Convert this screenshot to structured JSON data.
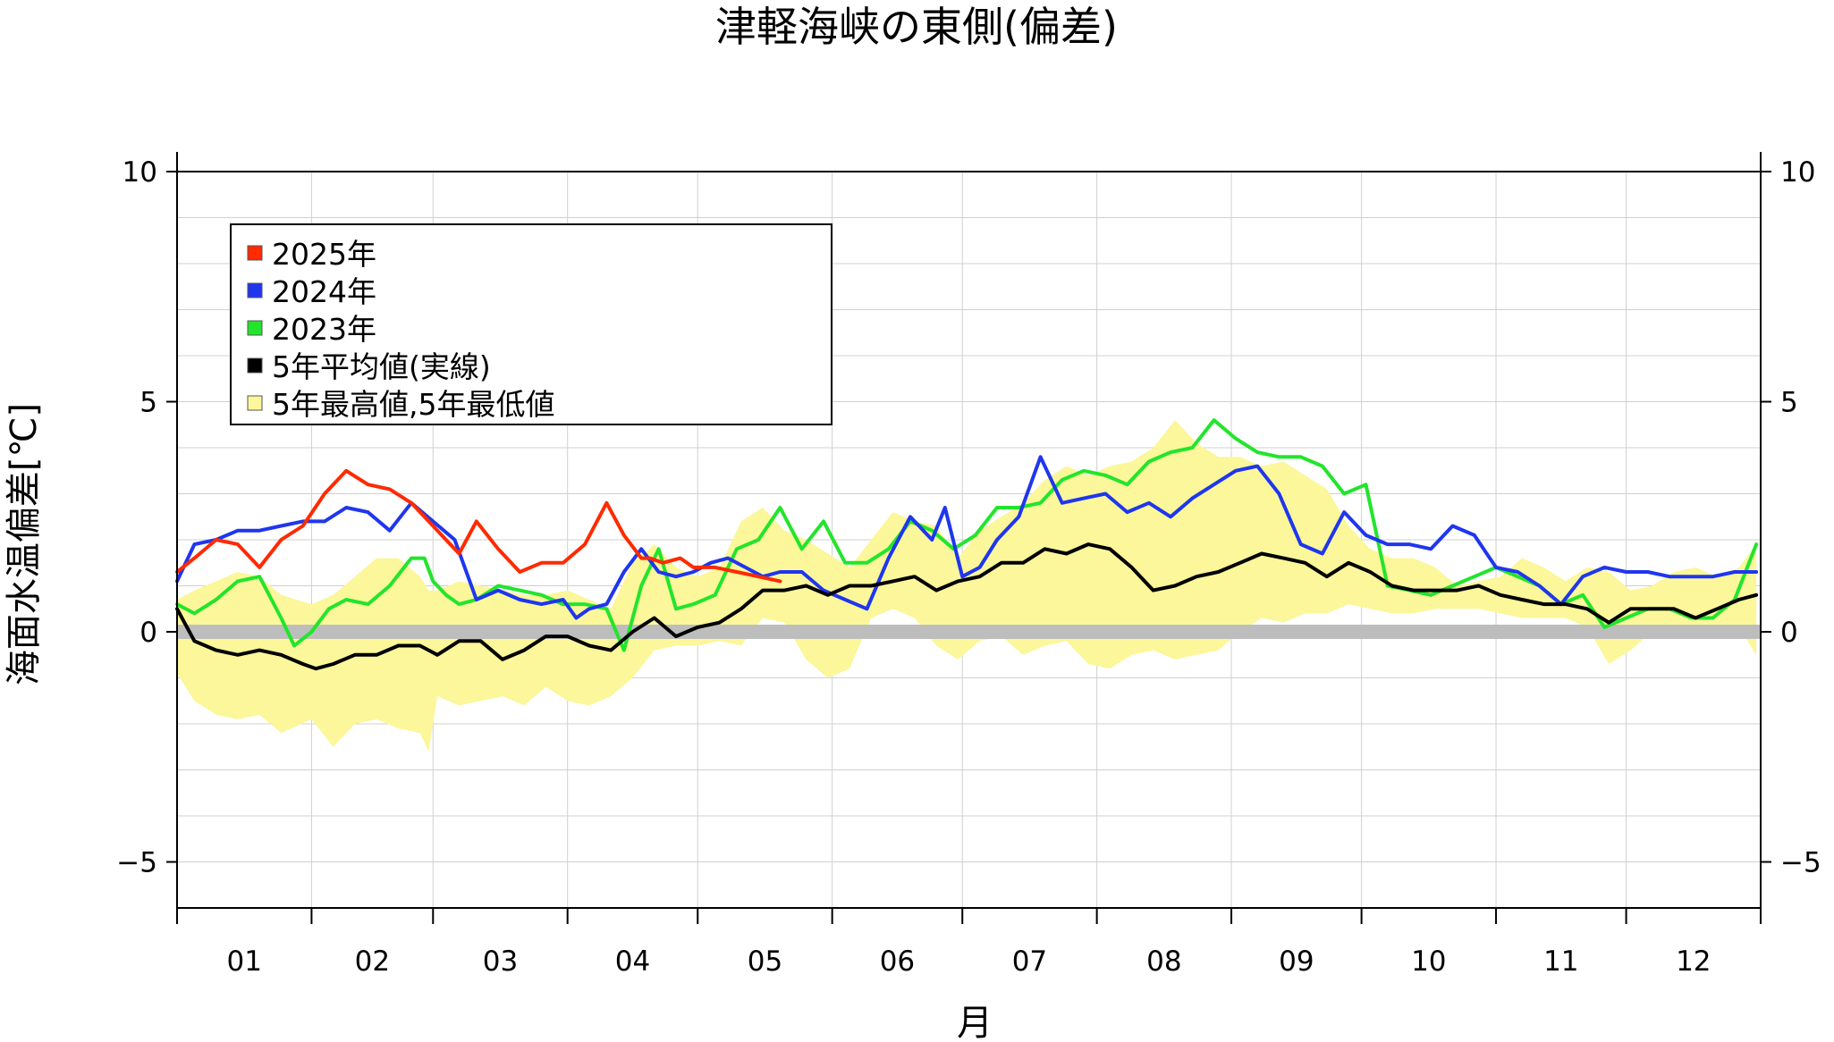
{
  "chart_data": {
    "type": "line",
    "title": "津軽海峡の東側(偏差)",
    "xlabel": "月",
    "ylabel": "海面水温偏差[℃]",
    "ylim": [
      -6,
      10
    ],
    "yticks": [
      10,
      5,
      0,
      -5
    ],
    "ytick_labels": [
      "10",
      "5",
      "0",
      "−5"
    ],
    "months": [
      "01",
      "02",
      "03",
      "04",
      "05",
      "06",
      "07",
      "08",
      "09",
      "10",
      "11",
      "12"
    ],
    "grid": true,
    "legend_position": "top-left",
    "legend": [
      {
        "label": "2025年",
        "color": "#ff2a00"
      },
      {
        "label": "2024年",
        "color": "#1f36ee"
      },
      {
        "label": "2023年",
        "color": "#22e52b"
      },
      {
        "label": "5年平均値(実線)",
        "color": "#000000"
      },
      {
        "label": "5年最高値,5年最低値",
        "color": "#fbf79a"
      }
    ],
    "x_unit": "day of year",
    "band": {
      "name": "5年最高値,5年最低値",
      "x": [
        1,
        5,
        10,
        15,
        20,
        25,
        32,
        37,
        42,
        47,
        52,
        57,
        59,
        61,
        66,
        71,
        76,
        81,
        86,
        91,
        96,
        101,
        106,
        111,
        116,
        121,
        126,
        131,
        136,
        141,
        146,
        151,
        156,
        161,
        166,
        171,
        176,
        181,
        186,
        191,
        196,
        201,
        206,
        211,
        216,
        221,
        226,
        231,
        236,
        241,
        246,
        251,
        256,
        261,
        266,
        271,
        276,
        281,
        286,
        291,
        296,
        301,
        306,
        311,
        316,
        321,
        326,
        331,
        336,
        341,
        346,
        351,
        356,
        361,
        365
      ],
      "upper": [
        0.7,
        0.9,
        1.1,
        1.3,
        1.2,
        0.8,
        0.6,
        0.8,
        1.2,
        1.6,
        1.6,
        1.2,
        0.9,
        0.9,
        1.1,
        1.0,
        0.9,
        0.8,
        0.8,
        0.9,
        0.7,
        0.5,
        1.5,
        1.9,
        1.4,
        1.2,
        1.4,
        2.4,
        2.7,
        2.2,
        2.0,
        1.7,
        1.4,
        2.0,
        2.6,
        2.4,
        2.3,
        1.6,
        2.2,
        2.5,
        2.8,
        3.3,
        3.6,
        3.4,
        3.6,
        3.7,
        4.0,
        4.6,
        4.1,
        3.8,
        3.8,
        3.6,
        3.7,
        3.4,
        3.1,
        2.3,
        1.8,
        1.6,
        1.6,
        1.4,
        1.0,
        1.1,
        1.2,
        1.6,
        1.4,
        1.1,
        1.4,
        1.3,
        0.9,
        1.0,
        1.3,
        1.4,
        1.2,
        1.4,
        1.9
      ],
      "lower": [
        -0.9,
        -1.5,
        -1.8,
        -1.9,
        -1.8,
        -2.2,
        -1.9,
        -2.5,
        -2.0,
        -1.9,
        -2.1,
        -2.2,
        -2.6,
        -1.4,
        -1.6,
        -1.5,
        -1.4,
        -1.6,
        -1.2,
        -1.5,
        -1.6,
        -1.4,
        -1.0,
        -0.4,
        -0.3,
        -0.3,
        -0.2,
        -0.3,
        0.3,
        0.2,
        -0.6,
        -1.0,
        -0.8,
        0.3,
        0.5,
        0.3,
        -0.3,
        -0.6,
        -0.2,
        -0.1,
        -0.5,
        -0.3,
        -0.2,
        -0.7,
        -0.8,
        -0.5,
        -0.4,
        -0.6,
        -0.5,
        -0.4,
        0.0,
        0.3,
        0.2,
        0.4,
        0.4,
        0.6,
        0.5,
        0.4,
        0.4,
        0.5,
        0.5,
        0.5,
        0.4,
        0.3,
        0.3,
        0.3,
        0.1,
        -0.7,
        -0.4,
        0.0,
        0.1,
        0.0,
        0.1,
        0.1,
        -0.5
      ]
    },
    "series": [
      {
        "name": "2025年",
        "color": "#ff2a00",
        "x": [
          1,
          5,
          10,
          15,
          20,
          25,
          30,
          35,
          40,
          45,
          50,
          55,
          60,
          63,
          66,
          70,
          75,
          80,
          85,
          90,
          95,
          100,
          104,
          108,
          110,
          113,
          117,
          120,
          125,
          130,
          135,
          140
        ],
        "y": [
          1.3,
          1.6,
          2.0,
          1.9,
          1.4,
          2.0,
          2.3,
          3.0,
          3.5,
          3.2,
          3.1,
          2.8,
          2.3,
          2.0,
          1.7,
          2.4,
          1.8,
          1.3,
          1.5,
          1.5,
          1.9,
          2.8,
          2.1,
          1.6,
          1.6,
          1.5,
          1.6,
          1.4,
          1.4,
          1.3,
          1.2,
          1.1
        ]
      },
      {
        "name": "2024年",
        "color": "#1f36ee",
        "x": [
          1,
          5,
          10,
          15,
          20,
          25,
          30,
          35,
          40,
          45,
          50,
          55,
          60,
          65,
          70,
          75,
          80,
          85,
          90,
          93,
          96,
          100,
          104,
          108,
          112,
          116,
          120,
          124,
          128,
          132,
          136,
          140,
          145,
          150,
          155,
          160,
          165,
          170,
          175,
          178,
          182,
          186,
          190,
          195,
          200,
          205,
          210,
          215,
          220,
          225,
          230,
          235,
          240,
          245,
          250,
          255,
          260,
          265,
          270,
          275,
          280,
          285,
          290,
          295,
          300,
          305,
          310,
          315,
          320,
          325,
          330,
          335,
          340,
          345,
          350,
          355,
          360,
          365
        ],
        "y": [
          1.1,
          1.9,
          2.0,
          2.2,
          2.2,
          2.3,
          2.4,
          2.4,
          2.7,
          2.6,
          2.2,
          2.8,
          2.4,
          2.0,
          0.7,
          0.9,
          0.7,
          0.6,
          0.7,
          0.3,
          0.5,
          0.6,
          1.3,
          1.8,
          1.3,
          1.2,
          1.3,
          1.5,
          1.6,
          1.4,
          1.2,
          1.3,
          1.3,
          0.9,
          0.7,
          0.5,
          1.6,
          2.5,
          2.0,
          2.7,
          1.2,
          1.4,
          2.0,
          2.5,
          3.8,
          2.8,
          2.9,
          3.0,
          2.6,
          2.8,
          2.5,
          2.9,
          3.2,
          3.5,
          3.6,
          3.0,
          1.9,
          1.7,
          2.6,
          2.1,
          1.9,
          1.9,
          1.8,
          2.3,
          2.1,
          1.4,
          1.3,
          1.0,
          0.6,
          1.2,
          1.4,
          1.3,
          1.3,
          1.2,
          1.2,
          1.2,
          1.3,
          1.3
        ]
      },
      {
        "name": "2023年",
        "color": "#22e52b",
        "x": [
          1,
          5,
          10,
          15,
          20,
          25,
          28,
          32,
          36,
          40,
          45,
          50,
          55,
          58,
          60,
          63,
          66,
          70,
          75,
          80,
          85,
          90,
          95,
          100,
          104,
          108,
          112,
          116,
          120,
          125,
          130,
          135,
          140,
          145,
          150,
          155,
          160,
          165,
          170,
          175,
          180,
          185,
          190,
          195,
          200,
          205,
          210,
          215,
          220,
          225,
          230,
          235,
          240,
          245,
          250,
          255,
          260,
          265,
          270,
          275,
          280,
          285,
          290,
          295,
          300,
          305,
          310,
          315,
          320,
          325,
          330,
          335,
          340,
          345,
          350,
          355,
          360,
          365
        ],
        "y": [
          0.6,
          0.4,
          0.7,
          1.1,
          1.2,
          0.3,
          -0.3,
          0.0,
          0.5,
          0.7,
          0.6,
          1.0,
          1.6,
          1.6,
          1.1,
          0.8,
          0.6,
          0.7,
          1.0,
          0.9,
          0.8,
          0.6,
          0.6,
          0.5,
          -0.4,
          1.0,
          1.8,
          0.5,
          0.6,
          0.8,
          1.8,
          2.0,
          2.7,
          1.8,
          2.4,
          1.5,
          1.5,
          1.8,
          2.4,
          2.2,
          1.8,
          2.1,
          2.7,
          2.7,
          2.8,
          3.3,
          3.5,
          3.4,
          3.2,
          3.7,
          3.9,
          4.0,
          4.6,
          4.2,
          3.9,
          3.8,
          3.8,
          3.6,
          3.0,
          3.2,
          1.0,
          0.9,
          0.8,
          1.0,
          1.2,
          1.4,
          1.2,
          1.0,
          0.6,
          0.8,
          0.1,
          0.3,
          0.5,
          0.5,
          0.3,
          0.3,
          0.7,
          1.9
        ]
      },
      {
        "name": "5年平均値(実線)",
        "color": "#000000",
        "x": [
          1,
          5,
          10,
          15,
          20,
          25,
          30,
          33,
          37,
          42,
          47,
          52,
          57,
          59,
          61,
          66,
          71,
          76,
          81,
          86,
          91,
          96,
          101,
          106,
          111,
          116,
          121,
          126,
          131,
          136,
          141,
          146,
          151,
          156,
          161,
          166,
          171,
          176,
          181,
          186,
          191,
          196,
          201,
          206,
          211,
          216,
          221,
          226,
          231,
          236,
          241,
          246,
          251,
          256,
          261,
          266,
          271,
          276,
          281,
          286,
          291,
          296,
          301,
          306,
          311,
          316,
          321,
          326,
          331,
          336,
          341,
          346,
          351,
          356,
          361,
          365
        ],
        "y": [
          0.5,
          -0.2,
          -0.4,
          -0.5,
          -0.4,
          -0.5,
          -0.7,
          -0.8,
          -0.7,
          -0.5,
          -0.5,
          -0.3,
          -0.3,
          -0.4,
          -0.5,
          -0.2,
          -0.2,
          -0.6,
          -0.4,
          -0.1,
          -0.1,
          -0.3,
          -0.4,
          0.0,
          0.3,
          -0.1,
          0.1,
          0.2,
          0.5,
          0.9,
          0.9,
          1.0,
          0.8,
          1.0,
          1.0,
          1.1,
          1.2,
          0.9,
          1.1,
          1.2,
          1.5,
          1.5,
          1.8,
          1.7,
          1.9,
          1.8,
          1.4,
          0.9,
          1.0,
          1.2,
          1.3,
          1.5,
          1.7,
          1.6,
          1.5,
          1.2,
          1.5,
          1.3,
          1.0,
          0.9,
          0.9,
          0.9,
          1.0,
          0.8,
          0.7,
          0.6,
          0.6,
          0.5,
          0.2,
          0.5,
          0.5,
          0.5,
          0.3,
          0.5,
          0.7,
          0.8
        ]
      }
    ]
  }
}
